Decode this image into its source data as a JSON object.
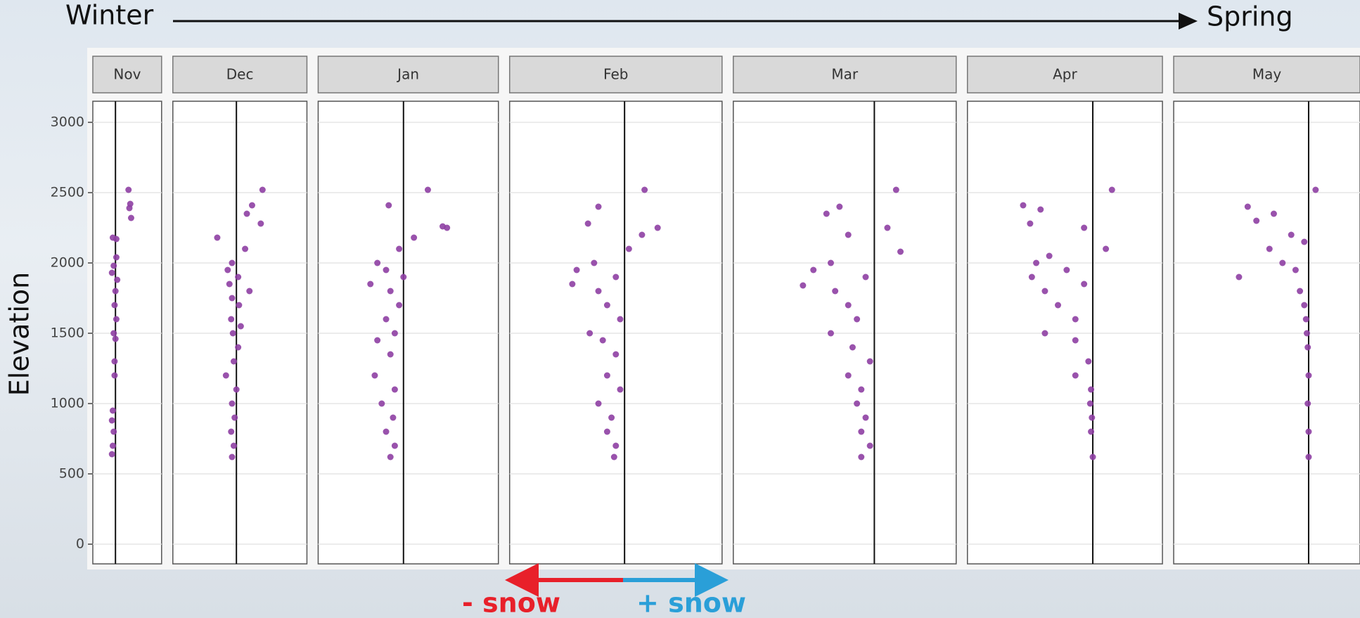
{
  "chart_data": {
    "type": "faceted-scatter",
    "top_left_label": "Winter",
    "top_right_label": "Spring",
    "ylabel": "Elevation",
    "neg_label": "- snow",
    "pos_label": "+ snow",
    "color": "#8e3fa3",
    "ylim": [
      -140,
      3150
    ],
    "yticks": [
      0,
      500,
      1000,
      1500,
      2000,
      2500,
      3000
    ],
    "grid": true,
    "facets": [
      {
        "name": "Nov",
        "xlim": [
          -0.26,
          0.53
        ],
        "y": [
          2520,
          2420,
          2390,
          2320,
          2180,
          2170,
          2040,
          1980,
          1930,
          1880,
          1800,
          1700,
          1600,
          1500,
          1460,
          1300,
          1200,
          950,
          880,
          800,
          700,
          640
        ],
        "x": [
          0.15,
          0.17,
          0.16,
          0.18,
          -0.03,
          0.01,
          0.01,
          -0.02,
          -0.04,
          0.02,
          0.0,
          -0.01,
          0.01,
          -0.02,
          0.0,
          -0.01,
          -0.01,
          -0.03,
          -0.04,
          -0.02,
          -0.03,
          -0.04
        ]
      },
      {
        "name": "Dec",
        "xlim": [
          -0.73,
          0.81
        ],
        "y": [
          2520,
          2410,
          2350,
          2280,
          2180,
          2100,
          2000,
          1950,
          1900,
          1850,
          1800,
          1750,
          1700,
          1600,
          1550,
          1500,
          1400,
          1300,
          1200,
          1100,
          1000,
          900,
          800,
          700,
          620
        ],
        "x": [
          0.3,
          0.18,
          0.12,
          0.28,
          -0.22,
          0.1,
          -0.05,
          -0.1,
          0.02,
          -0.08,
          0.15,
          -0.05,
          0.03,
          -0.06,
          0.05,
          -0.04,
          0.02,
          -0.03,
          -0.12,
          0.0,
          -0.05,
          -0.02,
          -0.06,
          -0.03,
          -0.05
        ]
      },
      {
        "name": "Jan",
        "xlim": [
          -0.98,
          1.09
        ],
        "y": [
          2520,
          2410,
          2260,
          2250,
          2180,
          2100,
          2000,
          1950,
          1900,
          1850,
          1800,
          1700,
          1600,
          1500,
          1450,
          1350,
          1200,
          1100,
          1000,
          900,
          800,
          700,
          620
        ],
        "x": [
          0.28,
          -0.17,
          0.45,
          0.5,
          0.12,
          -0.05,
          -0.3,
          -0.2,
          0.0,
          -0.38,
          -0.15,
          -0.05,
          -0.2,
          -0.1,
          -0.3,
          -0.15,
          -0.33,
          -0.1,
          -0.25,
          -0.12,
          -0.2,
          -0.1,
          -0.15
        ]
      },
      {
        "name": "Feb",
        "xlim": [
          -1.32,
          1.12
        ],
        "y": [
          2520,
          2400,
          2280,
          2250,
          2200,
          2100,
          2000,
          1950,
          1900,
          1850,
          1800,
          1700,
          1600,
          1500,
          1450,
          1350,
          1200,
          1100,
          1000,
          900,
          800,
          700,
          620
        ],
        "x": [
          0.23,
          -0.3,
          -0.42,
          0.38,
          0.2,
          0.05,
          -0.35,
          -0.55,
          -0.1,
          -0.6,
          -0.3,
          -0.2,
          -0.05,
          -0.4,
          -0.25,
          -0.1,
          -0.2,
          -0.05,
          -0.3,
          -0.15,
          -0.2,
          -0.1,
          -0.12
        ]
      },
      {
        "name": "Mar",
        "xlim": [
          -1.62,
          0.94
        ],
        "y": [
          2520,
          2400,
          2350,
          2250,
          2200,
          2080,
          2000,
          1950,
          1900,
          1840,
          1800,
          1700,
          1600,
          1500,
          1400,
          1300,
          1200,
          1100,
          1000,
          900,
          800,
          700,
          620
        ],
        "x": [
          0.25,
          -0.4,
          -0.55,
          0.15,
          -0.3,
          0.3,
          -0.5,
          -0.7,
          -0.1,
          -0.82,
          -0.45,
          -0.3,
          -0.2,
          -0.5,
          -0.25,
          -0.05,
          -0.3,
          -0.15,
          -0.2,
          -0.1,
          -0.15,
          -0.05,
          -0.15
        ]
      },
      {
        "name": "Apr",
        "xlim": [
          -1.44,
          0.8
        ],
        "y": [
          2520,
          2410,
          2380,
          2280,
          2250,
          2100,
          2050,
          2000,
          1950,
          1900,
          1850,
          1800,
          1700,
          1600,
          1500,
          1450,
          1300,
          1200,
          1100,
          1000,
          900,
          800,
          620
        ],
        "x": [
          0.22,
          -0.8,
          -0.6,
          -0.72,
          -0.1,
          0.15,
          -0.5,
          -0.65,
          -0.3,
          -0.7,
          -0.1,
          -0.55,
          -0.4,
          -0.2,
          -0.55,
          -0.2,
          -0.05,
          -0.2,
          -0.02,
          -0.03,
          -0.01,
          -0.02,
          0.0
        ]
      },
      {
        "name": "May",
        "xlim": [
          -1.55,
          0.59
        ],
        "y": [
          2520,
          2400,
          2350,
          2300,
          2200,
          2150,
          2100,
          2000,
          1950,
          1900,
          1800,
          1700,
          1600,
          1500,
          1400,
          1200,
          1000,
          800,
          620
        ],
        "x": [
          0.08,
          -0.7,
          -0.4,
          -0.6,
          -0.2,
          -0.05,
          -0.45,
          -0.3,
          -0.15,
          -0.8,
          -0.1,
          -0.05,
          -0.03,
          -0.02,
          -0.01,
          0.0,
          -0.01,
          0.0,
          0.0
        ]
      }
    ]
  }
}
